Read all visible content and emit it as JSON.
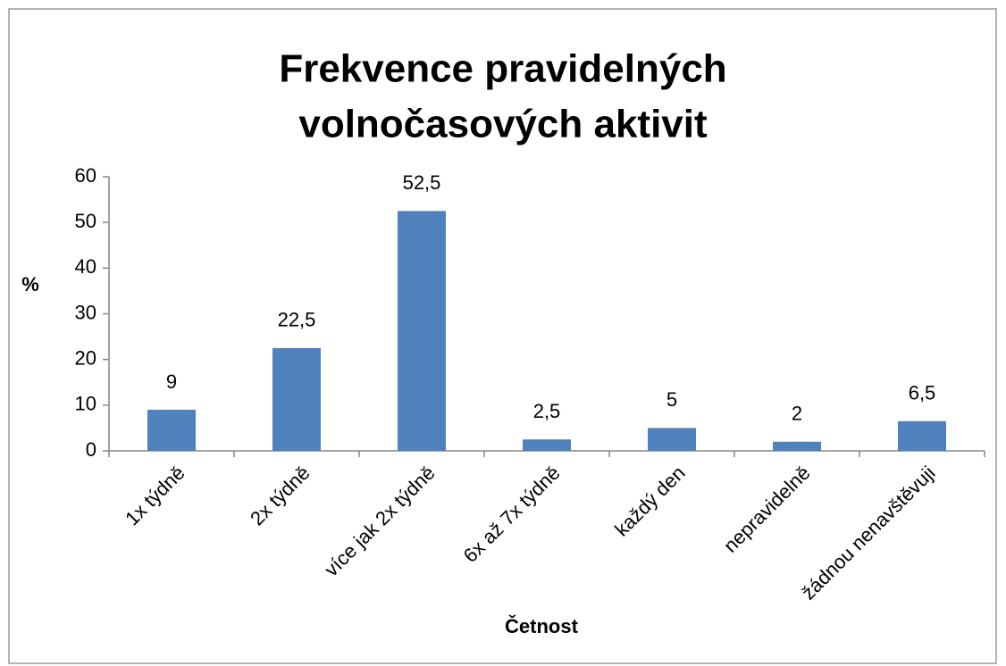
{
  "chart_data": {
    "type": "bar",
    "title": [
      "Frekvence pravidelných",
      "volnočasových aktivit"
    ],
    "y_label": "%",
    "x_label": "Četnost",
    "categories": [
      "1x týdně",
      "2x týdně",
      "více jak 2x týdně",
      "6x až 7x týdně",
      "každý den",
      "nepravidelně",
      "žádnou nenavštěvuji"
    ],
    "values": [
      9,
      22.5,
      52.5,
      2.5,
      5,
      2,
      6.5
    ],
    "value_labels": [
      "9",
      "22,5",
      "52,5",
      "2,5",
      "5",
      "2",
      "6,5"
    ],
    "color": "#4f81bd",
    "ylim": [
      0,
      60
    ],
    "yticks": [
      0,
      10,
      20,
      30,
      40,
      50,
      60
    ],
    "grid": false
  }
}
